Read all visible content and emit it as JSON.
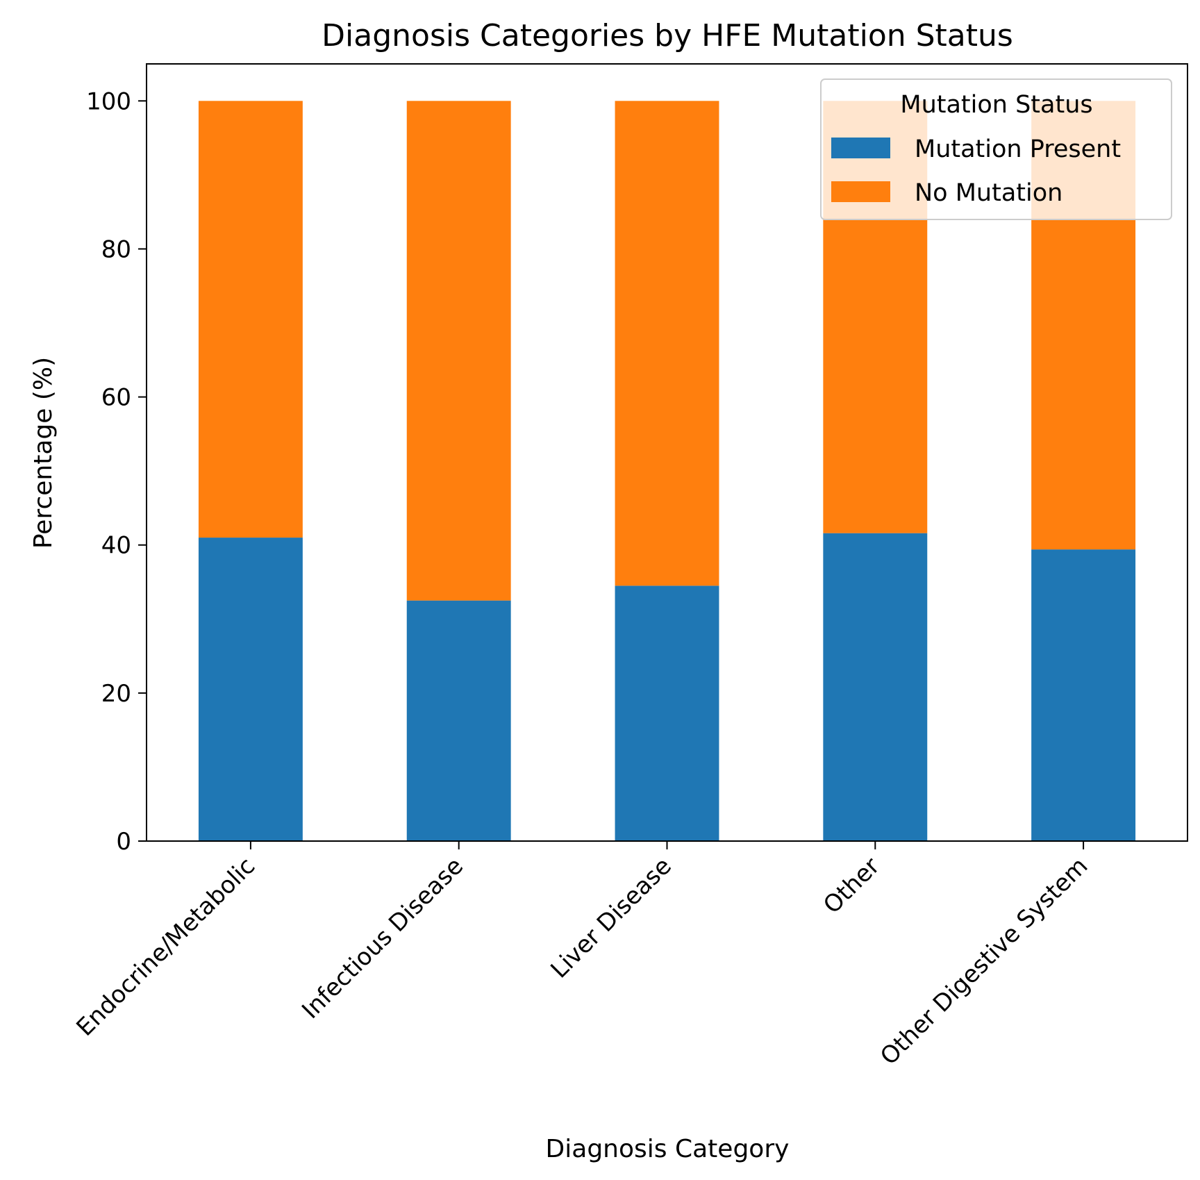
{
  "chart_data": {
    "type": "bar",
    "stacked": true,
    "title": "Diagnosis Categories by HFE Mutation Status",
    "xlabel": "Diagnosis Category",
    "ylabel": "Percentage (%)",
    "ylim": [
      0,
      105
    ],
    "yticks": [
      0,
      20,
      40,
      60,
      80,
      100
    ],
    "grid": false,
    "categories": [
      "Endocrine/Metabolic",
      "Infectious Disease",
      "Liver Disease",
      "Other",
      "Other Digestive System"
    ],
    "series": [
      {
        "name": "Mutation Present",
        "color": "#1f77b4",
        "values": [
          41.0,
          32.5,
          34.5,
          41.6,
          39.4
        ]
      },
      {
        "name": "No Mutation",
        "color": "#ff7f0e",
        "values": [
          59.0,
          67.5,
          65.5,
          58.4,
          60.6
        ]
      }
    ],
    "legend": {
      "title": "Mutation Status",
      "position": "upper-right"
    }
  }
}
